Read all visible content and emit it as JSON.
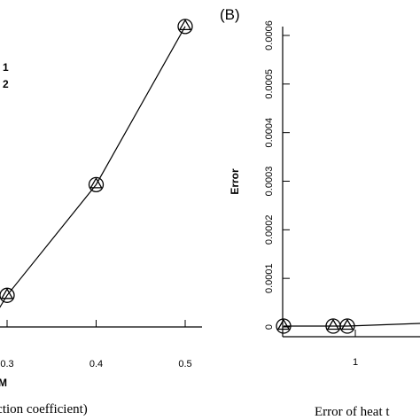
{
  "chart_data": [
    {
      "type": "line",
      "panel_label": "",
      "x": [
        0.3,
        0.4,
        0.5
      ],
      "series": [
        {
          "values": [
            6e-05,
            0.00027,
            0.00057
          ],
          "marker": "circle-triangle"
        }
      ],
      "xticks": [
        "0.3",
        "0.4",
        "0.5"
      ],
      "xlim": [
        0.3,
        0.5
      ],
      "ylim": [
        0.0,
        0.0006
      ],
      "xlabel": "M",
      "ylabel": "",
      "legend": [
        "1",
        "2"
      ],
      "caption": "iction coefficient)",
      "grid": false
    },
    {
      "type": "line",
      "panel_label": "(B)",
      "x": [
        0.97,
        1.07,
        1.1,
        1.2
      ],
      "series": [
        {
          "values": [
            0.0,
            0.0,
            0.0,
            1e-05
          ],
          "marker": "circle-triangle"
        }
      ],
      "yticks": [
        "0",
        "0.0001",
        "0.0002",
        "0.0003",
        "0.0004",
        "0.0005",
        "0.0006"
      ],
      "xticks": [
        "1"
      ],
      "xlim": [
        0.96,
        1.16
      ],
      "ylim": [
        0.0,
        0.0006
      ],
      "xlabel": "",
      "ylabel": "Error",
      "caption": "Error of heat t",
      "grid": false
    }
  ]
}
